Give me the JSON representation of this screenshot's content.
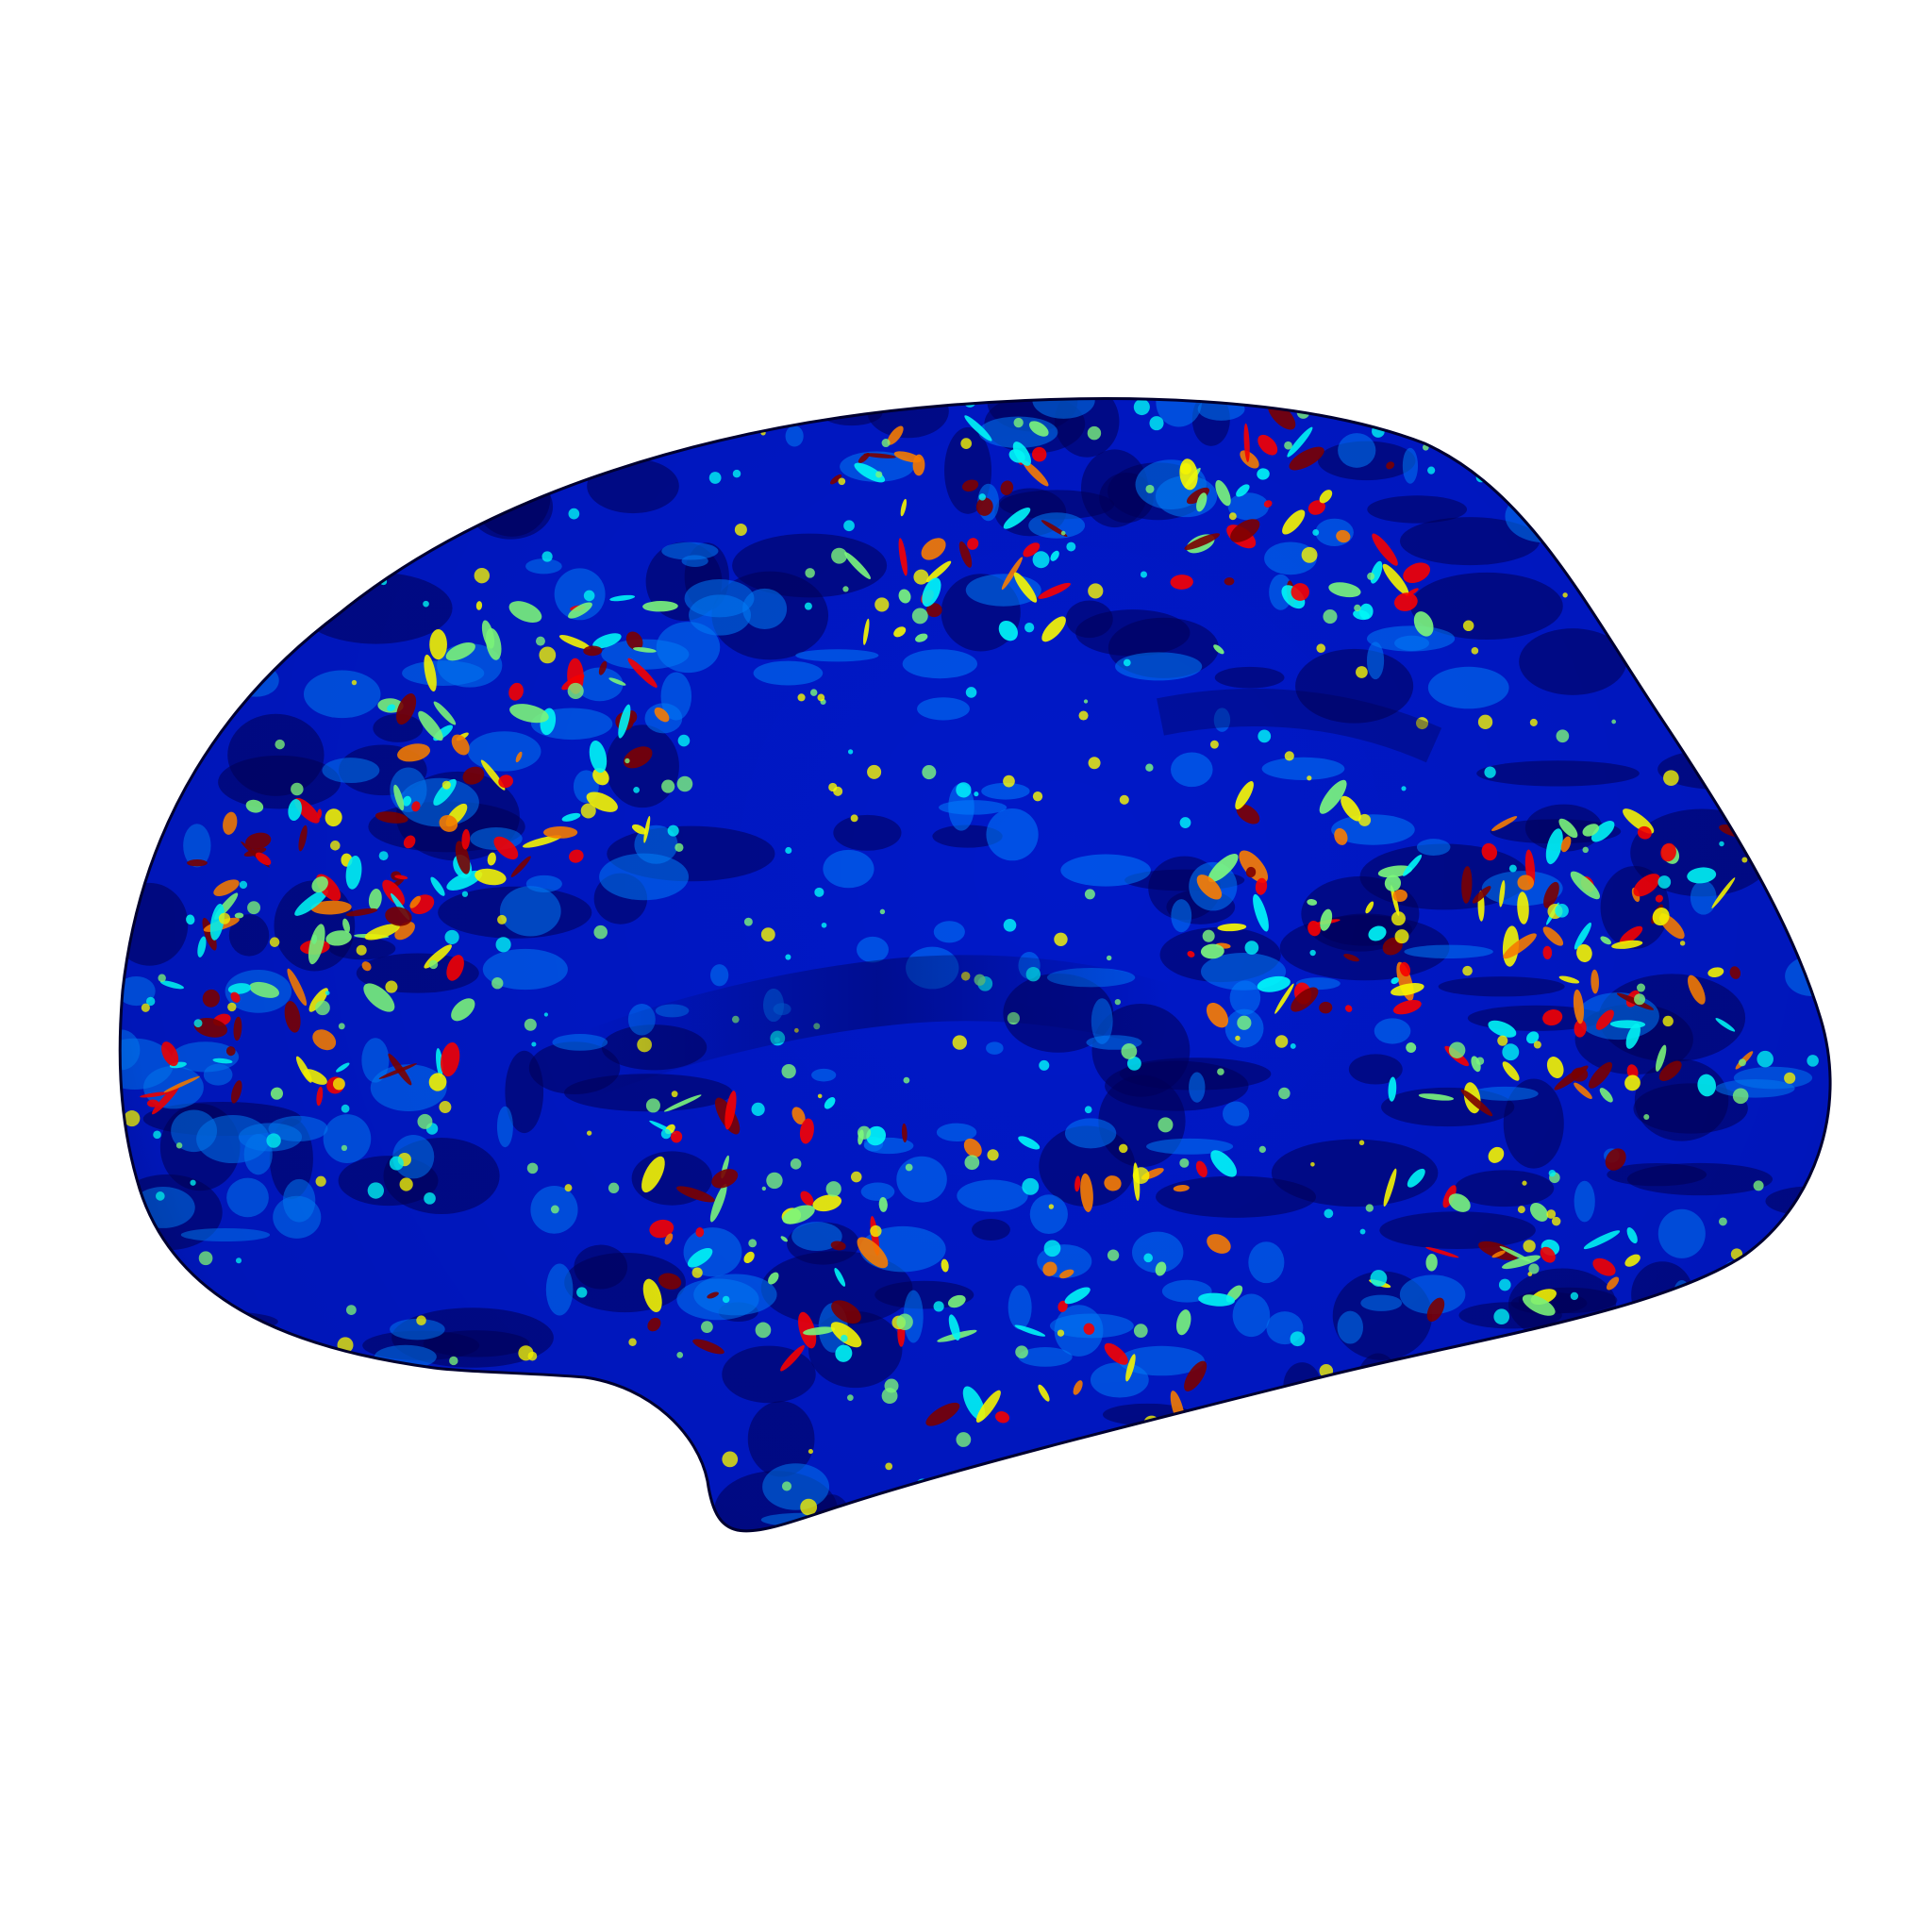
{
  "figure": {
    "background_color": "#ffffff",
    "surface": {
      "view": "lateral",
      "colormap": "jet",
      "colormap_stops": [
        "#00007f",
        "#0000ff",
        "#0080ff",
        "#00ffff",
        "#80ff80",
        "#ffff00",
        "#ff8000",
        "#ff0000",
        "#7f0000"
      ],
      "base_color": "#0018c8",
      "dark_color": "#00005a",
      "edge_color": "#000030"
    }
  }
}
